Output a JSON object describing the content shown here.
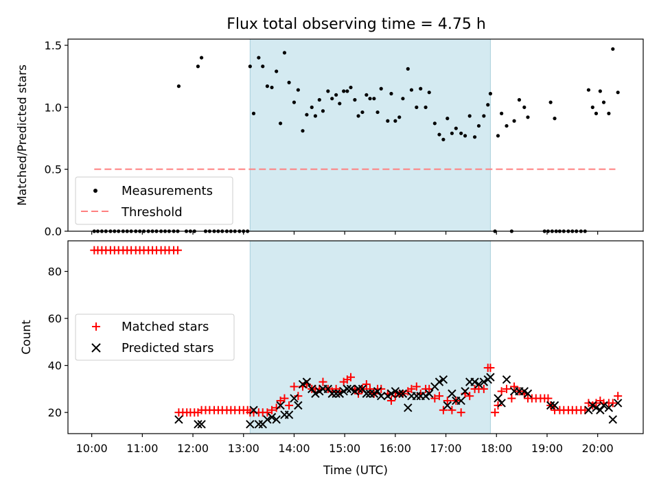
{
  "chart_data": [
    {
      "type": "scatter",
      "title": "Flux total observing time = 4.75 h",
      "xlabel": "",
      "ylabel": "Matched/Predicted stars",
      "xlim": [
        9.53,
        20.9
      ],
      "ylim": [
        0,
        1.55
      ],
      "yticks": [
        0.0,
        0.5,
        1.0,
        1.5
      ],
      "ytick_labels": [
        "0.0",
        "0.5",
        "1.0",
        "1.5"
      ],
      "shaded_region": {
        "x": [
          13.13,
          17.88
        ],
        "color": "#d4eaf1"
      },
      "legend": {
        "position": "lower-left",
        "entries": [
          "Measurements",
          "Threshold"
        ]
      },
      "series": [
        {
          "name": "Measurements",
          "marker": "dot",
          "color": "#000000",
          "x": [
            11.72,
            12.1,
            12.17,
            13.13,
            13.2,
            13.3,
            13.38,
            13.47,
            13.56,
            13.65,
            13.73,
            13.81,
            13.9,
            14.0,
            14.08,
            14.17,
            14.25,
            14.35,
            14.42,
            14.5,
            14.57,
            14.67,
            14.75,
            14.83,
            14.9,
            14.98,
            15.05,
            15.12,
            15.2,
            15.27,
            15.35,
            15.43,
            15.5,
            15.58,
            15.65,
            15.72,
            15.85,
            15.92,
            16.0,
            16.08,
            16.15,
            16.25,
            16.32,
            16.42,
            16.5,
            16.6,
            16.67,
            16.78,
            16.87,
            16.95,
            17.03,
            17.12,
            17.2,
            17.3,
            17.38,
            17.47,
            17.57,
            17.65,
            17.75,
            17.83,
            17.88,
            18.03,
            18.1,
            18.2,
            18.35,
            18.45,
            18.55,
            18.62,
            19.07,
            19.15,
            19.82,
            19.9,
            19.97,
            20.05,
            20.12,
            20.22,
            20.3,
            20.4
          ],
          "y": [
            1.17,
            1.33,
            1.4,
            1.33,
            0.95,
            1.4,
            1.33,
            1.17,
            1.16,
            1.29,
            0.87,
            1.44,
            1.2,
            1.04,
            1.14,
            0.81,
            0.94,
            1.0,
            0.93,
            1.06,
            0.97,
            1.13,
            1.07,
            1.1,
            1.03,
            1.13,
            1.13,
            1.16,
            1.06,
            0.93,
            0.96,
            1.1,
            1.07,
            1.07,
            0.96,
            1.15,
            0.89,
            1.11,
            0.89,
            0.92,
            1.07,
            1.31,
            1.14,
            1.0,
            1.15,
            1.0,
            1.12,
            0.87,
            0.78,
            0.74,
            0.91,
            0.79,
            0.83,
            0.79,
            0.77,
            0.93,
            0.76,
            0.85,
            0.93,
            1.02,
            1.11,
            0.77,
            0.95,
            0.85,
            0.89,
            1.06,
            1.0,
            0.92,
            1.04,
            0.91,
            1.14,
            1.0,
            0.95,
            1.13,
            1.04,
            0.95,
            1.47,
            1.12
          ]
        },
        {
          "name": "Measurements (zero)",
          "marker": "dot",
          "color": "#000000",
          "x": [
            10.05,
            10.12,
            10.2,
            10.28,
            10.37,
            10.45,
            10.53,
            10.62,
            10.7,
            10.78,
            10.87,
            10.95,
            11.03,
            11.12,
            11.2,
            11.28,
            11.37,
            11.45,
            11.53,
            11.62,
            11.7,
            11.87,
            11.95,
            12.03,
            12.25,
            12.33,
            12.42,
            12.5,
            12.58,
            12.67,
            12.75,
            12.83,
            12.92,
            13.0,
            13.08,
            17.97,
            18.3,
            18.95,
            19.02,
            19.1,
            19.18,
            19.25,
            19.33,
            19.42,
            19.5,
            19.58,
            19.67,
            19.75
          ],
          "y_const": 0.0
        },
        {
          "name": "Threshold",
          "marker": "dashed-line",
          "color": "#ff7f7f",
          "x": [
            10.05,
            20.35
          ],
          "y": [
            0.5,
            0.5
          ]
        }
      ]
    },
    {
      "type": "scatter",
      "title": "",
      "xlabel": "Time (UTC)",
      "ylabel": "Count",
      "xlim": [
        9.53,
        20.9
      ],
      "ylim": [
        11,
        93
      ],
      "yticks": [
        20,
        40,
        60,
        80
      ],
      "ytick_labels": [
        "20",
        "40",
        "60",
        "80"
      ],
      "xticks": [
        10,
        11,
        12,
        13,
        14,
        15,
        16,
        17,
        18,
        19,
        20
      ],
      "xtick_labels": [
        "10:00",
        "11:00",
        "12:00",
        "13:00",
        "14:00",
        "15:00",
        "16:00",
        "17:00",
        "18:00",
        "19:00",
        "20:00"
      ],
      "shaded_region": {
        "x": [
          13.13,
          17.88
        ],
        "color": "#d4eaf1"
      },
      "legend": {
        "position": "center-left",
        "entries": [
          "Matched stars",
          "Predicted stars"
        ]
      },
      "series": [
        {
          "name": "Matched stars",
          "marker": "plus",
          "color": "#ff0000",
          "x": [
            10.05,
            10.12,
            10.2,
            10.28,
            10.37,
            10.45,
            10.53,
            10.62,
            10.7,
            10.78,
            10.87,
            10.95,
            11.03,
            11.12,
            11.2,
            11.28,
            11.37,
            11.45,
            11.53,
            11.62,
            11.7,
            11.72,
            11.8,
            11.88,
            11.95,
            12.03,
            12.1,
            12.17,
            12.25,
            12.33,
            12.42,
            12.5,
            12.58,
            12.67,
            12.75,
            12.83,
            12.92,
            13.0,
            13.08,
            13.13,
            13.2,
            13.3,
            13.38,
            13.47,
            13.56,
            13.65,
            13.73,
            13.81,
            13.9,
            14.0,
            14.08,
            14.17,
            14.25,
            14.35,
            14.42,
            14.5,
            14.57,
            14.67,
            14.75,
            14.83,
            14.9,
            14.98,
            15.05,
            15.12,
            15.2,
            15.27,
            15.35,
            15.43,
            15.5,
            15.58,
            15.65,
            15.72,
            15.85,
            15.92,
            16.0,
            16.08,
            16.15,
            16.25,
            16.32,
            16.42,
            16.5,
            16.6,
            16.67,
            16.78,
            16.87,
            16.95,
            17.03,
            17.12,
            17.2,
            17.3,
            17.38,
            17.47,
            17.57,
            17.65,
            17.75,
            17.83,
            17.88,
            17.97,
            18.03,
            18.1,
            18.2,
            18.3,
            18.35,
            18.45,
            18.55,
            18.62,
            18.7,
            18.78,
            18.87,
            18.95,
            19.02,
            19.07,
            19.15,
            19.25,
            19.33,
            19.42,
            19.5,
            19.58,
            19.67,
            19.75,
            19.82,
            19.9,
            19.97,
            20.05,
            20.12,
            20.22,
            20.3,
            20.4
          ],
          "y": [
            89,
            89,
            89,
            89,
            89,
            89,
            89,
            89,
            89,
            89,
            89,
            89,
            89,
            89,
            89,
            89,
            89,
            89,
            89,
            89,
            89,
            20,
            20,
            20,
            20,
            20,
            20,
            21,
            21,
            21,
            21,
            21,
            21,
            21,
            21,
            21,
            21,
            21,
            21,
            20,
            20,
            20,
            20,
            20,
            21,
            22,
            25,
            26,
            23,
            31,
            27,
            31,
            32,
            30,
            30,
            30,
            33,
            30,
            29,
            30,
            29,
            33,
            34,
            35,
            30,
            28,
            30,
            32,
            30,
            28,
            30,
            30,
            28,
            25,
            27,
            28,
            28,
            29,
            30,
            31,
            28,
            30,
            30,
            26,
            27,
            21,
            25,
            21,
            25,
            20,
            28,
            27,
            30,
            30,
            30,
            39,
            39,
            20,
            23,
            29,
            30,
            26,
            31,
            29,
            28,
            26,
            26,
            26,
            26,
            26,
            26,
            23,
            21,
            21,
            21,
            21,
            21,
            21,
            21,
            21,
            24,
            23,
            24,
            25,
            24,
            24,
            24,
            27
          ]
        },
        {
          "name": "Predicted stars",
          "marker": "x",
          "color": "#000000",
          "x": [
            11.72,
            12.1,
            12.17,
            13.13,
            13.2,
            13.3,
            13.38,
            13.47,
            13.56,
            13.65,
            13.73,
            13.81,
            13.9,
            14.0,
            14.08,
            14.17,
            14.25,
            14.35,
            14.42,
            14.5,
            14.57,
            14.67,
            14.75,
            14.83,
            14.9,
            14.98,
            15.05,
            15.12,
            15.2,
            15.27,
            15.35,
            15.43,
            15.5,
            15.58,
            15.65,
            15.72,
            15.85,
            15.92,
            16.0,
            16.08,
            16.15,
            16.25,
            16.32,
            16.42,
            16.5,
            16.6,
            16.67,
            16.78,
            16.87,
            16.95,
            17.03,
            17.12,
            17.2,
            17.3,
            17.38,
            17.47,
            17.57,
            17.65,
            17.75,
            17.83,
            17.88,
            18.03,
            18.1,
            18.2,
            18.35,
            18.45,
            18.55,
            18.62,
            19.07,
            19.15,
            19.82,
            19.9,
            19.97,
            20.05,
            20.12,
            20.22,
            20.3,
            20.4
          ],
          "y": [
            17,
            15,
            15,
            15,
            21,
            15,
            15,
            17,
            18,
            17,
            23,
            19,
            19,
            26,
            23,
            32,
            33,
            30,
            28,
            29,
            30,
            30,
            28,
            28,
            28,
            29,
            30,
            30,
            29,
            30,
            30,
            28,
            28,
            28,
            29,
            27,
            27,
            28,
            29,
            28,
            28,
            22,
            27,
            27,
            27,
            27,
            28,
            31,
            33,
            34,
            23,
            28,
            25,
            25,
            29,
            33,
            33,
            32,
            33,
            34,
            35,
            26,
            24,
            34,
            29,
            29,
            29,
            28,
            23,
            23,
            21,
            23,
            22,
            21,
            23,
            22,
            17,
            24
          ]
        }
      ]
    }
  ]
}
